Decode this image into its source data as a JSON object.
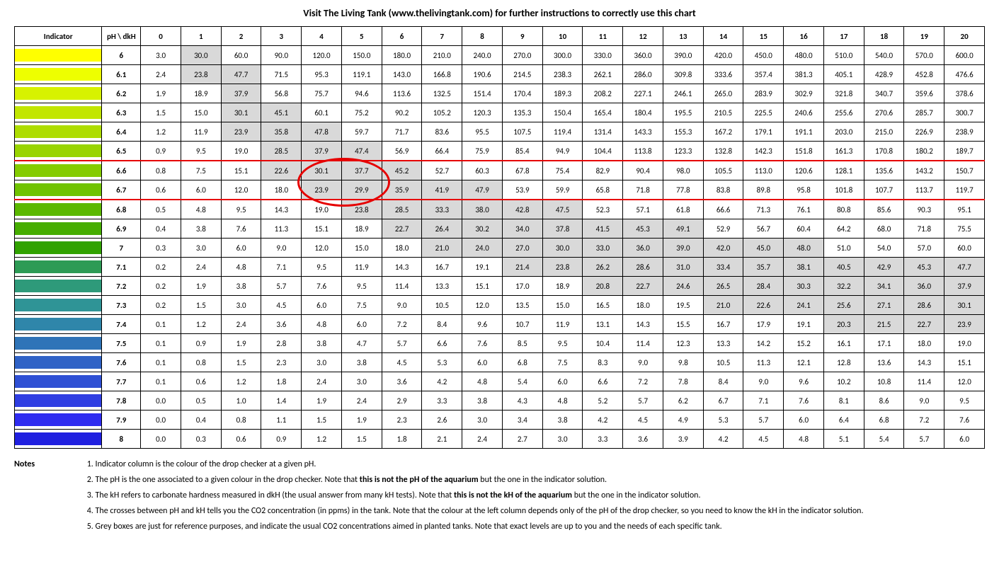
{
  "title": "Visit The Living Tank (www.thelivingtank.com) for further instructions to correctly use this chart",
  "headers": {
    "indicator": "Indicator",
    "ph_dkh": "pH \\ dkH"
  },
  "dkh_columns": [
    "0",
    "1",
    "2",
    "3",
    "4",
    "5",
    "6",
    "7",
    "8",
    "9",
    "10",
    "11",
    "12",
    "13",
    "14",
    "15",
    "16",
    "17",
    "18",
    "19",
    "20"
  ],
  "indicator_colors": [
    "#ffff00",
    "#eeff00",
    "#d7f200",
    "#c2e600",
    "#aedd00",
    "#99d400",
    "#85cc00",
    "#70c300",
    "#5bb800",
    "#46ad00",
    "#31a200",
    "#2d9b55",
    "#2e9a7a",
    "#2f9496",
    "#2f86aa",
    "#2f74b8",
    "#2f62c6",
    "#2f50d4",
    "#2f3ee2",
    "#2f2cf0",
    "#2020e0"
  ],
  "ph_values": [
    "6",
    "6.1",
    "6.2",
    "6.3",
    "6.4",
    "6.5",
    "6.6",
    "6.7",
    "6.8",
    "6.9",
    "7",
    "7.1",
    "7.2",
    "7.3",
    "7.4",
    "7.5",
    "7.6",
    "7.7",
    "7.8",
    "7.9",
    "8"
  ],
  "grid": [
    [
      "3.0",
      "30.0",
      "60.0",
      "90.0",
      "120.0",
      "150.0",
      "180.0",
      "210.0",
      "240.0",
      "270.0",
      "300.0",
      "330.0",
      "360.0",
      "390.0",
      "420.0",
      "450.0",
      "480.0",
      "510.0",
      "540.0",
      "570.0",
      "600.0"
    ],
    [
      "2.4",
      "23.8",
      "47.7",
      "71.5",
      "95.3",
      "119.1",
      "143.0",
      "166.8",
      "190.6",
      "214.5",
      "238.3",
      "262.1",
      "286.0",
      "309.8",
      "333.6",
      "357.4",
      "381.3",
      "405.1",
      "428.9",
      "452.8",
      "476.6"
    ],
    [
      "1.9",
      "18.9",
      "37.9",
      "56.8",
      "75.7",
      "94.6",
      "113.6",
      "132.5",
      "151.4",
      "170.4",
      "189.3",
      "208.2",
      "227.1",
      "246.1",
      "265.0",
      "283.9",
      "302.9",
      "321.8",
      "340.7",
      "359.6",
      "378.6"
    ],
    [
      "1.5",
      "15.0",
      "30.1",
      "45.1",
      "60.1",
      "75.2",
      "90.2",
      "105.2",
      "120.3",
      "135.3",
      "150.4",
      "165.4",
      "180.4",
      "195.5",
      "210.5",
      "225.5",
      "240.6",
      "255.6",
      "270.6",
      "285.7",
      "300.7"
    ],
    [
      "1.2",
      "11.9",
      "23.9",
      "35.8",
      "47.8",
      "59.7",
      "71.7",
      "83.6",
      "95.5",
      "107.5",
      "119.4",
      "131.4",
      "143.3",
      "155.3",
      "167.2",
      "179.1",
      "191.1",
      "203.0",
      "215.0",
      "226.9",
      "238.9"
    ],
    [
      "0.9",
      "9.5",
      "19.0",
      "28.5",
      "37.9",
      "47.4",
      "56.9",
      "66.4",
      "75.9",
      "85.4",
      "94.9",
      "104.4",
      "113.8",
      "123.3",
      "132.8",
      "142.3",
      "151.8",
      "161.3",
      "170.8",
      "180.2",
      "189.7"
    ],
    [
      "0.8",
      "7.5",
      "15.1",
      "22.6",
      "30.1",
      "37.7",
      "45.2",
      "52.7",
      "60.3",
      "67.8",
      "75.4",
      "82.9",
      "90.4",
      "98.0",
      "105.5",
      "113.0",
      "120.6",
      "128.1",
      "135.6",
      "143.2",
      "150.7"
    ],
    [
      "0.6",
      "6.0",
      "12.0",
      "18.0",
      "23.9",
      "29.9",
      "35.9",
      "41.9",
      "47.9",
      "53.9",
      "59.9",
      "65.8",
      "71.8",
      "77.8",
      "83.8",
      "89.8",
      "95.8",
      "101.8",
      "107.7",
      "113.7",
      "119.7"
    ],
    [
      "0.5",
      "4.8",
      "9.5",
      "14.3",
      "19.0",
      "23.8",
      "28.5",
      "33.3",
      "38.0",
      "42.8",
      "47.5",
      "52.3",
      "57.1",
      "61.8",
      "66.6",
      "71.3",
      "76.1",
      "80.8",
      "85.6",
      "90.3",
      "95.1"
    ],
    [
      "0.4",
      "3.8",
      "7.6",
      "11.3",
      "15.1",
      "18.9",
      "22.7",
      "26.4",
      "30.2",
      "34.0",
      "37.8",
      "41.5",
      "45.3",
      "49.1",
      "52.9",
      "56.7",
      "60.4",
      "64.2",
      "68.0",
      "71.8",
      "75.5"
    ],
    [
      "0.3",
      "3.0",
      "6.0",
      "9.0",
      "12.0",
      "15.0",
      "18.0",
      "21.0",
      "24.0",
      "27.0",
      "30.0",
      "33.0",
      "36.0",
      "39.0",
      "42.0",
      "45.0",
      "48.0",
      "51.0",
      "54.0",
      "57.0",
      "60.0"
    ],
    [
      "0.2",
      "2.4",
      "4.8",
      "7.1",
      "9.5",
      "11.9",
      "14.3",
      "16.7",
      "19.1",
      "21.4",
      "23.8",
      "26.2",
      "28.6",
      "31.0",
      "33.4",
      "35.7",
      "38.1",
      "40.5",
      "42.9",
      "45.3",
      "47.7"
    ],
    [
      "0.2",
      "1.9",
      "3.8",
      "5.7",
      "7.6",
      "9.5",
      "11.4",
      "13.3",
      "15.1",
      "17.0",
      "18.9",
      "20.8",
      "22.7",
      "24.6",
      "26.5",
      "28.4",
      "30.3",
      "32.2",
      "34.1",
      "36.0",
      "37.9"
    ],
    [
      "0.2",
      "1.5",
      "3.0",
      "4.5",
      "6.0",
      "7.5",
      "9.0",
      "10.5",
      "12.0",
      "13.5",
      "15.0",
      "16.5",
      "18.0",
      "19.5",
      "21.0",
      "22.6",
      "24.1",
      "25.6",
      "27.1",
      "28.6",
      "30.1"
    ],
    [
      "0.1",
      "1.2",
      "2.4",
      "3.6",
      "4.8",
      "6.0",
      "7.2",
      "8.4",
      "9.6",
      "10.7",
      "11.9",
      "13.1",
      "14.3",
      "15.5",
      "16.7",
      "17.9",
      "19.1",
      "20.3",
      "21.5",
      "22.7",
      "23.9"
    ],
    [
      "0.1",
      "0.9",
      "1.9",
      "2.8",
      "3.8",
      "4.7",
      "5.7",
      "6.6",
      "7.6",
      "8.5",
      "9.5",
      "10.4",
      "11.4",
      "12.3",
      "13.3",
      "14.2",
      "15.2",
      "16.1",
      "17.1",
      "18.0",
      "19.0"
    ],
    [
      "0.1",
      "0.8",
      "1.5",
      "2.3",
      "3.0",
      "3.8",
      "4.5",
      "5.3",
      "6.0",
      "6.8",
      "7.5",
      "8.3",
      "9.0",
      "9.8",
      "10.5",
      "11.3",
      "12.1",
      "12.8",
      "13.6",
      "14.3",
      "15.1"
    ],
    [
      "0.1",
      "0.6",
      "1.2",
      "1.8",
      "2.4",
      "3.0",
      "3.6",
      "4.2",
      "4.8",
      "5.4",
      "6.0",
      "6.6",
      "7.2",
      "7.8",
      "8.4",
      "9.0",
      "9.6",
      "10.2",
      "10.8",
      "11.4",
      "12.0"
    ],
    [
      "0.0",
      "0.5",
      "1.0",
      "1.4",
      "1.9",
      "2.4",
      "2.9",
      "3.3",
      "3.8",
      "4.3",
      "4.8",
      "5.2",
      "5.7",
      "6.2",
      "6.7",
      "7.1",
      "7.6",
      "8.1",
      "8.6",
      "9.0",
      "9.5"
    ],
    [
      "0.0",
      "0.4",
      "0.8",
      "1.1",
      "1.5",
      "1.9",
      "2.3",
      "2.6",
      "3.0",
      "3.4",
      "3.8",
      "4.2",
      "4.5",
      "4.9",
      "5.3",
      "5.7",
      "6.0",
      "6.4",
      "6.8",
      "7.2",
      "7.6"
    ],
    [
      "0.0",
      "0.3",
      "0.6",
      "0.9",
      "1.2",
      "1.5",
      "1.8",
      "2.1",
      "2.4",
      "2.7",
      "3.0",
      "3.3",
      "3.6",
      "3.9",
      "4.2",
      "4.5",
      "4.8",
      "5.1",
      "5.4",
      "5.7",
      "6.0"
    ]
  ],
  "shade_range": [
    20,
    50
  ],
  "highlight_rows": [
    6,
    7
  ],
  "circle_region": {
    "rows": [
      6,
      7
    ],
    "cols": [
      4,
      5
    ]
  },
  "notes_label": "Notes",
  "notes": [
    {
      "pre": "1. Indicator column is the colour of the drop checker at a given pH.",
      "bold": "",
      "post": ""
    },
    {
      "pre": "2. The pH is the one associated to a given colour in the drop checker. Note that ",
      "bold": "this is not the pH of the aquarium",
      "post": " but the one in the indicator solution."
    },
    {
      "pre": "3. The kH refers to carbonate hardness measured in dkH (the usual answer from many kH tests). Note that ",
      "bold": "this is not the kH of the aquarium",
      "post": " but the one in the indicator solution."
    },
    {
      "pre": "4. The crosses between pH and kH tells you the CO2 concentration (in ppms) in the tank. Note that the colour at the left column depends only of the pH of the drop checker, so you need to know the kH in the indicator solution.",
      "bold": "",
      "post": ""
    },
    {
      "pre": "5. Grey boxes are just for reference purposes, and indicate the usual CO2 concentrations aimed in planted tanks. Note that exact levels are up to you and the needs of each specific tank.",
      "bold": "",
      "post": ""
    }
  ]
}
